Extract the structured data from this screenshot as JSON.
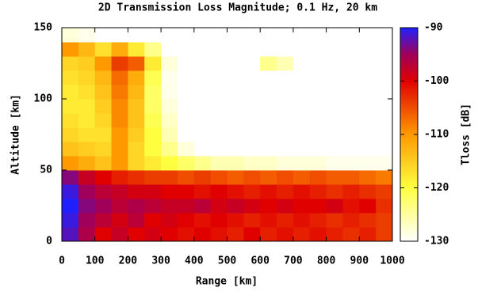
{
  "chart_data": {
    "type": "heatmap",
    "title": "2D Transmission Loss Magnitude; 0.1 Hz, 20 km",
    "xlabel": "Range [km]",
    "ylabel": "Altitude [km]",
    "zlabel": "Tloss [dB]",
    "xlim": [
      0,
      1000
    ],
    "ylim": [
      0,
      150
    ],
    "zlim": [
      -130,
      -90
    ],
    "xticks": [
      0,
      100,
      200,
      300,
      400,
      500,
      600,
      700,
      800,
      900,
      1000
    ],
    "yticks": [
      0,
      50,
      100,
      150
    ],
    "zticks": [
      -90,
      -100,
      -110,
      -120,
      -130
    ],
    "colorscale": [
      {
        "value": -130,
        "color": "#ffffff"
      },
      {
        "value": -120,
        "color": "#ffff40"
      },
      {
        "value": -110,
        "color": "#ff9900"
      },
      {
        "value": -100,
        "color": "#e00000"
      },
      {
        "value": -95,
        "color": "#a0005a"
      },
      {
        "value": -90,
        "color": "#2020ff"
      }
    ],
    "xbins": [
      0,
      50,
      100,
      150,
      200,
      250,
      300,
      350,
      400,
      450,
      500,
      550,
      600,
      650,
      700,
      750,
      800,
      850,
      900,
      950,
      1000
    ],
    "ybins": [
      0,
      10,
      20,
      30,
      40,
      50,
      60,
      70,
      80,
      90,
      100,
      110,
      120,
      130,
      140,
      150
    ],
    "z": [
      [
        -92,
        -96,
        -100,
        -98,
        -100,
        -99,
        -100,
        -101,
        -100,
        -101,
        -102,
        -100,
        -102,
        -101,
        -102,
        -101,
        -102,
        -103,
        -102,
        -104
      ],
      [
        -91,
        -95,
        -97,
        -99,
        -97,
        -100,
        -99,
        -100,
        -101,
        -100,
        -101,
        -102,
        -101,
        -102,
        -101,
        -102,
        -103,
        -102,
        -103,
        -104
      ],
      [
        -90,
        -94,
        -95,
        -97,
        -96,
        -97,
        -98,
        -98,
        -97,
        -99,
        -98,
        -99,
        -100,
        -99,
        -100,
        -100,
        -99,
        -101,
        -100,
        -103
      ],
      [
        -91,
        -95,
        -97,
        -98,
        -99,
        -99,
        -100,
        -100,
        -101,
        -100,
        -101,
        -102,
        -101,
        -102,
        -101,
        -102,
        -103,
        -102,
        -103,
        -104
      ],
      [
        -94,
        -98,
        -100,
        -102,
        -103,
        -104,
        -104,
        -105,
        -104,
        -105,
        -106,
        -105,
        -106,
        -105,
        -106,
        -105,
        -106,
        -106,
        -107,
        -108
      ],
      [
        -110,
        -112,
        -114,
        -110,
        -116,
        -118,
        -120,
        -122,
        -124,
        -126,
        -126,
        -127,
        -127,
        -128,
        -128,
        -128,
        -129,
        -129,
        -129,
        -129
      ],
      [
        -114,
        -115,
        -116,
        -110,
        -116,
        -120,
        -124,
        -128,
        -130,
        -130,
        -130,
        -130,
        -130,
        -130,
        -130,
        -130,
        -130,
        -130,
        -130,
        -130
      ],
      [
        -116,
        -117,
        -117,
        -110,
        -115,
        -120,
        -126,
        -130,
        -130,
        -130,
        -130,
        -130,
        -130,
        -130,
        -130,
        -130,
        -130,
        -130,
        -130,
        -130
      ],
      [
        -117,
        -118,
        -116,
        -109,
        -114,
        -121,
        -127,
        -130,
        -130,
        -130,
        -130,
        -130,
        -130,
        -130,
        -130,
        -130,
        -130,
        -130,
        -130,
        -130
      ],
      [
        -118,
        -118,
        -115,
        -109,
        -114,
        -122,
        -128,
        -130,
        -130,
        -130,
        -130,
        -130,
        -130,
        -130,
        -130,
        -130,
        -130,
        -130,
        -130,
        -130
      ],
      [
        -118,
        -117,
        -114,
        -108,
        -113,
        -122,
        -129,
        -130,
        -130,
        -130,
        -130,
        -130,
        -130,
        -130,
        -130,
        -130,
        -130,
        -130,
        -130,
        -130
      ],
      [
        -117,
        -116,
        -113,
        -107,
        -112,
        -121,
        -129,
        -130,
        -130,
        -130,
        -130,
        -130,
        -130,
        -130,
        -130,
        -130,
        -130,
        -130,
        -130,
        -130
      ],
      [
        -116,
        -115,
        -110,
        -104,
        -106,
        -118,
        -128,
        -130,
        -130,
        -130,
        -130,
        -130,
        -124,
        -126,
        -130,
        -130,
        -130,
        -130,
        -130,
        -130
      ],
      [
        -110,
        -113,
        -117,
        -112,
        -118,
        -124,
        -130,
        -130,
        -130,
        -130,
        -130,
        -130,
        -130,
        -130,
        -130,
        -130,
        -130,
        -130,
        -130,
        -130
      ],
      [
        -128,
        -129,
        -130,
        -130,
        -130,
        -130,
        -130,
        -130,
        -130,
        -130,
        -130,
        -130,
        -130,
        -130,
        -130,
        -130,
        -130,
        -130,
        -130,
        -130
      ]
    ]
  }
}
